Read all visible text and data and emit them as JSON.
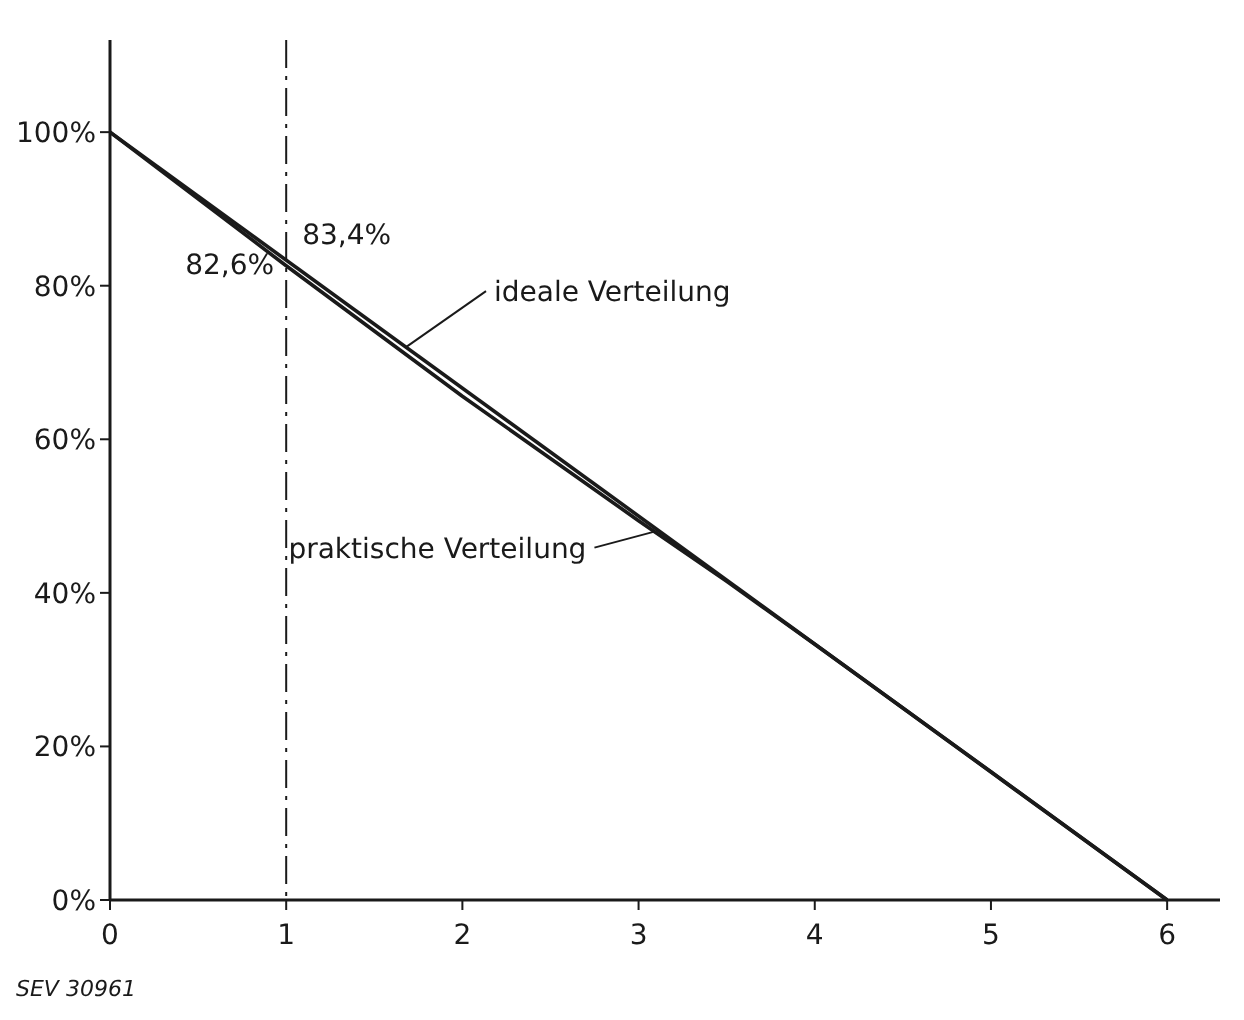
{
  "chart_data": {
    "type": "line",
    "xlim": [
      0,
      6.3
    ],
    "ylim": [
      0,
      112
    ],
    "xticks": [
      0,
      1,
      2,
      3,
      4,
      5,
      6
    ],
    "yticks": [
      {
        "value": 0,
        "label": "0%"
      },
      {
        "value": 20,
        "label": "20%"
      },
      {
        "value": 40,
        "label": "40%"
      },
      {
        "value": 60,
        "label": "60%"
      },
      {
        "value": 80,
        "label": "80%"
      },
      {
        "value": 100,
        "label": "100%"
      }
    ],
    "series": [
      {
        "name": "ideale Verteilung",
        "color": "#1a1a1a",
        "x": [
          0,
          6
        ],
        "values": [
          100,
          0
        ]
      },
      {
        "name": "praktische Verteilung",
        "color": "#1a1a1a",
        "x": [
          0,
          1,
          2,
          3,
          3.5,
          4,
          5,
          6
        ],
        "values": [
          100,
          82.6,
          65.6,
          49.4,
          41.5,
          33.3,
          16.7,
          0
        ]
      }
    ],
    "ref_lines": [
      {
        "axis": "x",
        "value": 1,
        "line_style": "dashdot"
      }
    ],
    "annotations": [
      {
        "text": "83,4%",
        "x": 1,
        "y": 83.4
      },
      {
        "text": "82,6%",
        "x": 1,
        "y": 82.6
      },
      "SEV 30961"
    ],
    "grid": false,
    "line_style": "solid"
  }
}
